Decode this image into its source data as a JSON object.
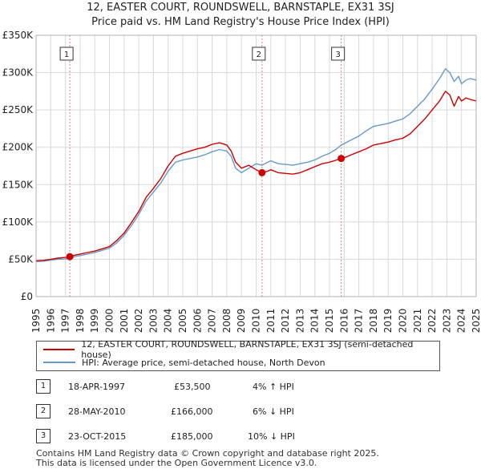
{
  "title_line1": "12, EASTER COURT, ROUNDSWELL, BARNSTAPLE, EX31 3SJ",
  "title_line2": "Price paid vs. HM Land Registry's House Price Index (HPI)",
  "legend": {
    "items": [
      {
        "label": "12, EASTER COURT, ROUNDSWELL, BARNSTAPLE, EX31 3SJ (semi-detached house)",
        "color": "#cc0000"
      },
      {
        "label": "HPI: Average price, semi-detached house, North Devon",
        "color": "#6699cc"
      }
    ]
  },
  "sales": [
    {
      "num": "1",
      "date": "18-APR-1997",
      "price": "£53,500",
      "hpi": "4% ↑ HPI"
    },
    {
      "num": "2",
      "date": "28-MAY-2010",
      "price": "£166,000",
      "hpi": "6% ↓ HPI"
    },
    {
      "num": "3",
      "date": "23-OCT-2015",
      "price": "£185,000",
      "hpi": "10% ↓ HPI"
    }
  ],
  "footer_line1": "Contains HM Land Registry data © Crown copyright and database right 2025.",
  "footer_line2": "This data is licensed under the Open Government Licence v3.0.",
  "chart_data": {
    "type": "line",
    "xlim": [
      1995,
      2025
    ],
    "ylim": [
      0,
      350000
    ],
    "y_ticks": [
      0,
      50000,
      100000,
      150000,
      200000,
      250000,
      300000,
      350000
    ],
    "y_tick_labels": [
      "£0",
      "£50K",
      "£100K",
      "£150K",
      "£200K",
      "£250K",
      "£300K",
      "£350K"
    ],
    "x_ticks": [
      1995,
      1996,
      1997,
      1998,
      1999,
      2000,
      2001,
      2002,
      2003,
      2004,
      2005,
      2006,
      2007,
      2008,
      2009,
      2010,
      2011,
      2012,
      2013,
      2014,
      2015,
      2016,
      2017,
      2018,
      2019,
      2020,
      2021,
      2022,
      2023,
      2024,
      2025
    ],
    "x_tick_labels": [
      "1995",
      "1996",
      "1997",
      "1998",
      "1999",
      "2000",
      "2001",
      "2002",
      "2003",
      "2004",
      "2005",
      "2006",
      "2007",
      "2008",
      "2009",
      "2010",
      "2011",
      "2012",
      "2013",
      "2014",
      "2015",
      "2016",
      "2017",
      "2018",
      "2019",
      "2020",
      "2021",
      "2022",
      "2023",
      "2024",
      "2025"
    ],
    "grid": true,
    "series": [
      {
        "name": "HPI: Average price, semi-detached house, North Devon",
        "color": "#6699cc",
        "x": [
          1995.0,
          1995.5,
          1996.0,
          1996.5,
          1997.0,
          1997.3,
          1997.5,
          1998.0,
          1998.5,
          1999.0,
          1999.5,
          2000.0,
          2000.5,
          2001.0,
          2001.5,
          2002.0,
          2002.5,
          2003.0,
          2003.5,
          2004.0,
          2004.5,
          2005.0,
          2005.5,
          2006.0,
          2006.5,
          2007.0,
          2007.5,
          2008.0,
          2008.3,
          2008.6,
          2009.0,
          2009.5,
          2010.0,
          2010.4,
          2010.8,
          2011.0,
          2011.5,
          2012.0,
          2012.5,
          2013.0,
          2013.5,
          2014.0,
          2014.5,
          2015.0,
          2015.5,
          2015.8,
          2016.0,
          2016.5,
          2017.0,
          2017.5,
          2018.0,
          2018.5,
          2019.0,
          2019.5,
          2020.0,
          2020.5,
          2021.0,
          2021.5,
          2022.0,
          2022.5,
          2022.9,
          2023.2,
          2023.5,
          2023.8,
          2024.0,
          2024.3,
          2024.6,
          2025.0
        ],
        "y": [
          47000,
          47500,
          49000,
          50000,
          50500,
          51500,
          53000,
          55000,
          57000,
          59000,
          62000,
          65000,
          72000,
          82000,
          95000,
          110000,
          128000,
          140000,
          152000,
          168000,
          180000,
          183000,
          185000,
          187000,
          190000,
          194000,
          197000,
          195000,
          188000,
          172000,
          166000,
          172000,
          178000,
          176000,
          180000,
          182000,
          178000,
          177000,
          176000,
          178000,
          180000,
          183000,
          188000,
          192000,
          198000,
          203000,
          205000,
          210000,
          215000,
          222000,
          228000,
          230000,
          232000,
          235000,
          238000,
          245000,
          255000,
          265000,
          278000,
          292000,
          305000,
          300000,
          288000,
          295000,
          285000,
          290000,
          292000,
          290000
        ]
      },
      {
        "name": "12, EASTER COURT, ROUNDSWELL, BARNSTAPLE, EX31 3SJ (semi-detached house)",
        "color": "#cc0000",
        "x": [
          1995.0,
          1995.5,
          1996.0,
          1996.5,
          1997.0,
          1997.3,
          1997.5,
          1998.0,
          1998.5,
          1999.0,
          1999.5,
          2000.0,
          2000.5,
          2001.0,
          2001.5,
          2002.0,
          2002.5,
          2003.0,
          2003.5,
          2004.0,
          2004.5,
          2005.0,
          2005.5,
          2006.0,
          2006.5,
          2007.0,
          2007.5,
          2008.0,
          2008.3,
          2008.6,
          2009.0,
          2009.5,
          2010.0,
          2010.4,
          2010.8,
          2011.0,
          2011.5,
          2012.0,
          2012.5,
          2013.0,
          2013.5,
          2014.0,
          2014.5,
          2015.0,
          2015.5,
          2015.8,
          2016.0,
          2016.5,
          2017.0,
          2017.5,
          2018.0,
          2018.5,
          2019.0,
          2019.5,
          2020.0,
          2020.5,
          2021.0,
          2021.5,
          2022.0,
          2022.5,
          2022.9,
          2023.2,
          2023.5,
          2023.8,
          2024.0,
          2024.3,
          2024.6,
          2025.0
        ],
        "y": [
          48000,
          48500,
          50000,
          51500,
          52500,
          53500,
          55000,
          57000,
          59000,
          61000,
          64000,
          67000,
          75000,
          85000,
          99000,
          114000,
          133000,
          145000,
          158000,
          175000,
          188000,
          192000,
          195000,
          198000,
          200000,
          204000,
          206000,
          203000,
          195000,
          180000,
          172000,
          176000,
          170000,
          166000,
          168000,
          170000,
          166000,
          165000,
          164000,
          166000,
          170000,
          174000,
          178000,
          180000,
          183000,
          185000,
          186000,
          190000,
          194000,
          198000,
          203000,
          205000,
          207000,
          210000,
          212000,
          218000,
          228000,
          238000,
          250000,
          262000,
          275000,
          270000,
          255000,
          268000,
          262000,
          266000,
          264000,
          262000
        ]
      }
    ],
    "sale_points": [
      {
        "num": "1",
        "x": 1997.3,
        "y": 53500
      },
      {
        "num": "2",
        "x": 2010.4,
        "y": 166000
      },
      {
        "num": "3",
        "x": 2015.8,
        "y": 185000
      }
    ]
  }
}
